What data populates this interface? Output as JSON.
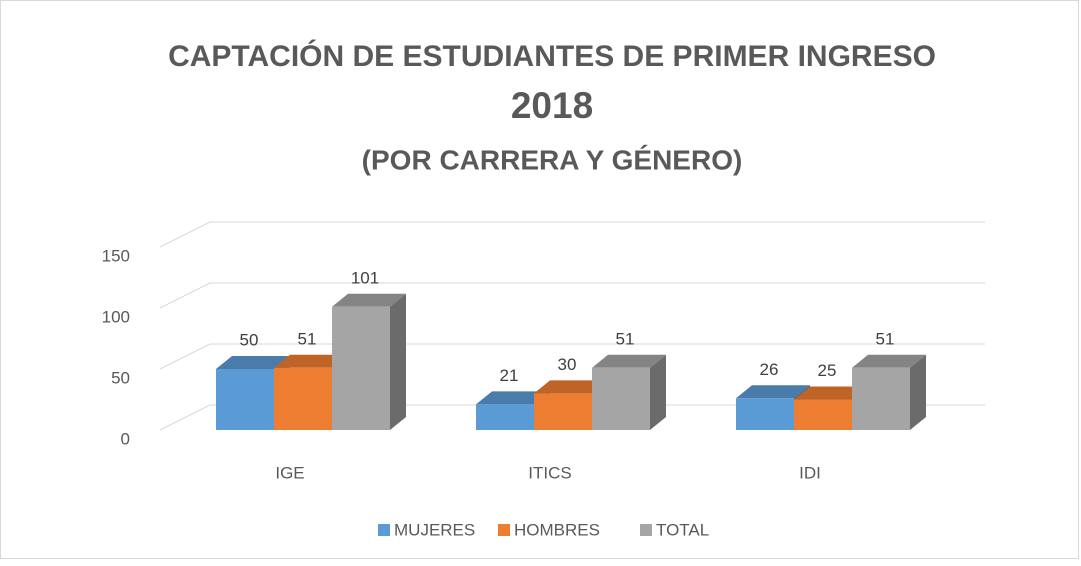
{
  "chart_data": {
    "type": "bar3d",
    "title": "CAPTACIÓN DE ESTUDIANTES DE PRIMER INGRESO",
    "subtitle": [
      "2018",
      "(POR CARRERA Y GÉNERO)"
    ],
    "categories": [
      "IGE",
      "ITICS",
      "IDI"
    ],
    "series": [
      {
        "name": "MUJERES",
        "color": "#5b9bd5",
        "values": [
          50,
          21,
          26
        ]
      },
      {
        "name": "HOMBRES",
        "color": "#ed7d31",
        "values": [
          51,
          30,
          25
        ]
      },
      {
        "name": "TOTAL",
        "color": "#a5a5a5",
        "values": [
          101,
          51,
          51
        ]
      }
    ],
    "ylim": [
      0,
      150
    ],
    "yticks": [
      0,
      50,
      100,
      150
    ],
    "grid": true,
    "legend": "bottom"
  }
}
